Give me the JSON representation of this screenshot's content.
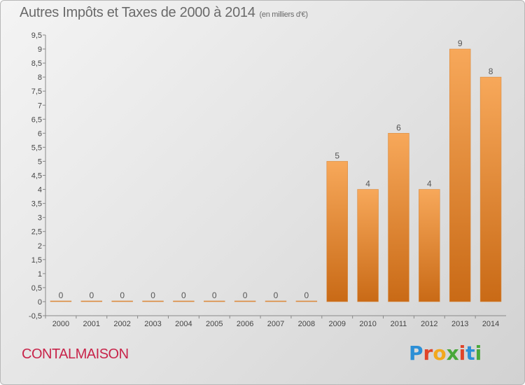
{
  "header": {
    "title": "Autres Impôts et Taxes de 2000 à 2014",
    "subtitle": "(en milliers d'€)"
  },
  "footer": {
    "town": "CONTALMAISON",
    "logo": "Proxiti"
  },
  "colors": {
    "bar_top": "#f7a85a",
    "bar_bottom": "#c96a16",
    "town": "#c8244a",
    "logo_letters": [
      "#2c8fd6",
      "#e0452a",
      "#f2a81d",
      "#49a83a",
      "#e0452a",
      "#2c8fd6",
      "#49a83a"
    ]
  },
  "chart_data": {
    "type": "bar",
    "categories": [
      "2000",
      "2001",
      "2002",
      "2003",
      "2004",
      "2005",
      "2006",
      "2007",
      "2008",
      "2009",
      "2010",
      "2011",
      "2012",
      "2013",
      "2014"
    ],
    "values": [
      0,
      0,
      0,
      0,
      0,
      0,
      0,
      0,
      0,
      5,
      4,
      6,
      4,
      9,
      8
    ],
    "data_labels": [
      "0",
      "0",
      "0",
      "0",
      "0",
      "0",
      "0",
      "0",
      "0",
      "5",
      "4",
      "6",
      "4",
      "9",
      "8"
    ],
    "ylim": [
      -0.5,
      9.5
    ],
    "yticks": [
      -0.5,
      0,
      0.5,
      1,
      1.5,
      2,
      2.5,
      3,
      3.5,
      4,
      4.5,
      5,
      5.5,
      6,
      6.5,
      7,
      7.5,
      8,
      8.5,
      9,
      9.5
    ],
    "ytick_labels": [
      "-0,5",
      "0",
      "0,5",
      "1",
      "1,5",
      "2",
      "2,5",
      "3",
      "3,5",
      "4",
      "4,5",
      "5",
      "5,5",
      "6",
      "6,5",
      "7",
      "7,5",
      "8",
      "8,5",
      "9",
      "9,5"
    ],
    "grid": false
  }
}
